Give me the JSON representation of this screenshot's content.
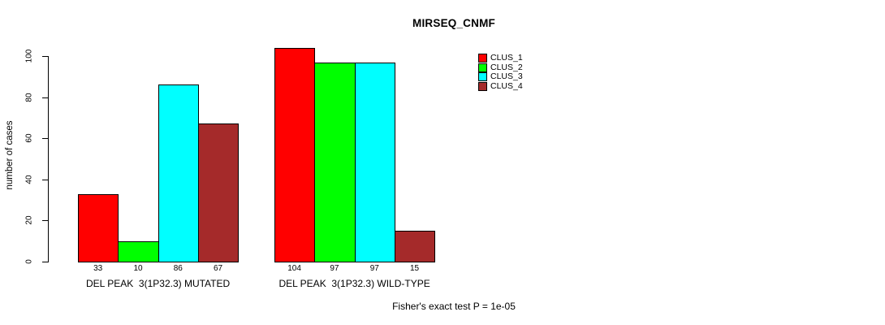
{
  "title": "MIRSEQ_CNMF",
  "background_color": "#FFFFFF",
  "chart_data": {
    "type": "bar",
    "title": "MIRSEQ_CNMF",
    "xlabel": "",
    "ylabel": "number of cases",
    "yticks": [
      0,
      20,
      40,
      60,
      80,
      100
    ],
    "ylim": [
      0,
      104
    ],
    "grid": false,
    "legend_position": "right",
    "categories": [
      "DEL PEAK  3(1P32.3) MUTATED",
      "DEL PEAK  3(1P32.3) WILD-TYPE"
    ],
    "groups": [
      {
        "label": "DEL PEAK  3(1P32.3) MUTATED",
        "values": [
          33,
          10,
          86,
          67
        ]
      },
      {
        "label": "DEL PEAK  3(1P32.3) WILD-TYPE",
        "values": [
          104,
          97,
          97,
          15
        ]
      }
    ],
    "series": [
      {
        "name": "CLUS_1",
        "color": "#FF0000"
      },
      {
        "name": "CLUS_2",
        "color": "#00FF00"
      },
      {
        "name": "CLUS_3",
        "color": "#00FFFF"
      },
      {
        "name": "CLUS_4",
        "color": "#A52A2A"
      }
    ],
    "bar_border_color": "#000000",
    "annotation": "Fisher's exact test P = 1e-05"
  }
}
